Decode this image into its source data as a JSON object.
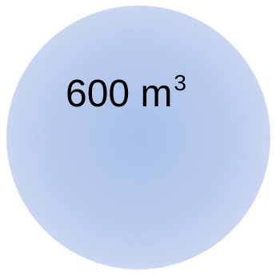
{
  "shape": {
    "kind": "sphere",
    "fill_color": "#b9cbec",
    "center_color": "#a9c0ea",
    "edge_color": "#c8d6f1"
  },
  "label": {
    "value": "600",
    "unit": "m",
    "unit_exponent": "3"
  }
}
